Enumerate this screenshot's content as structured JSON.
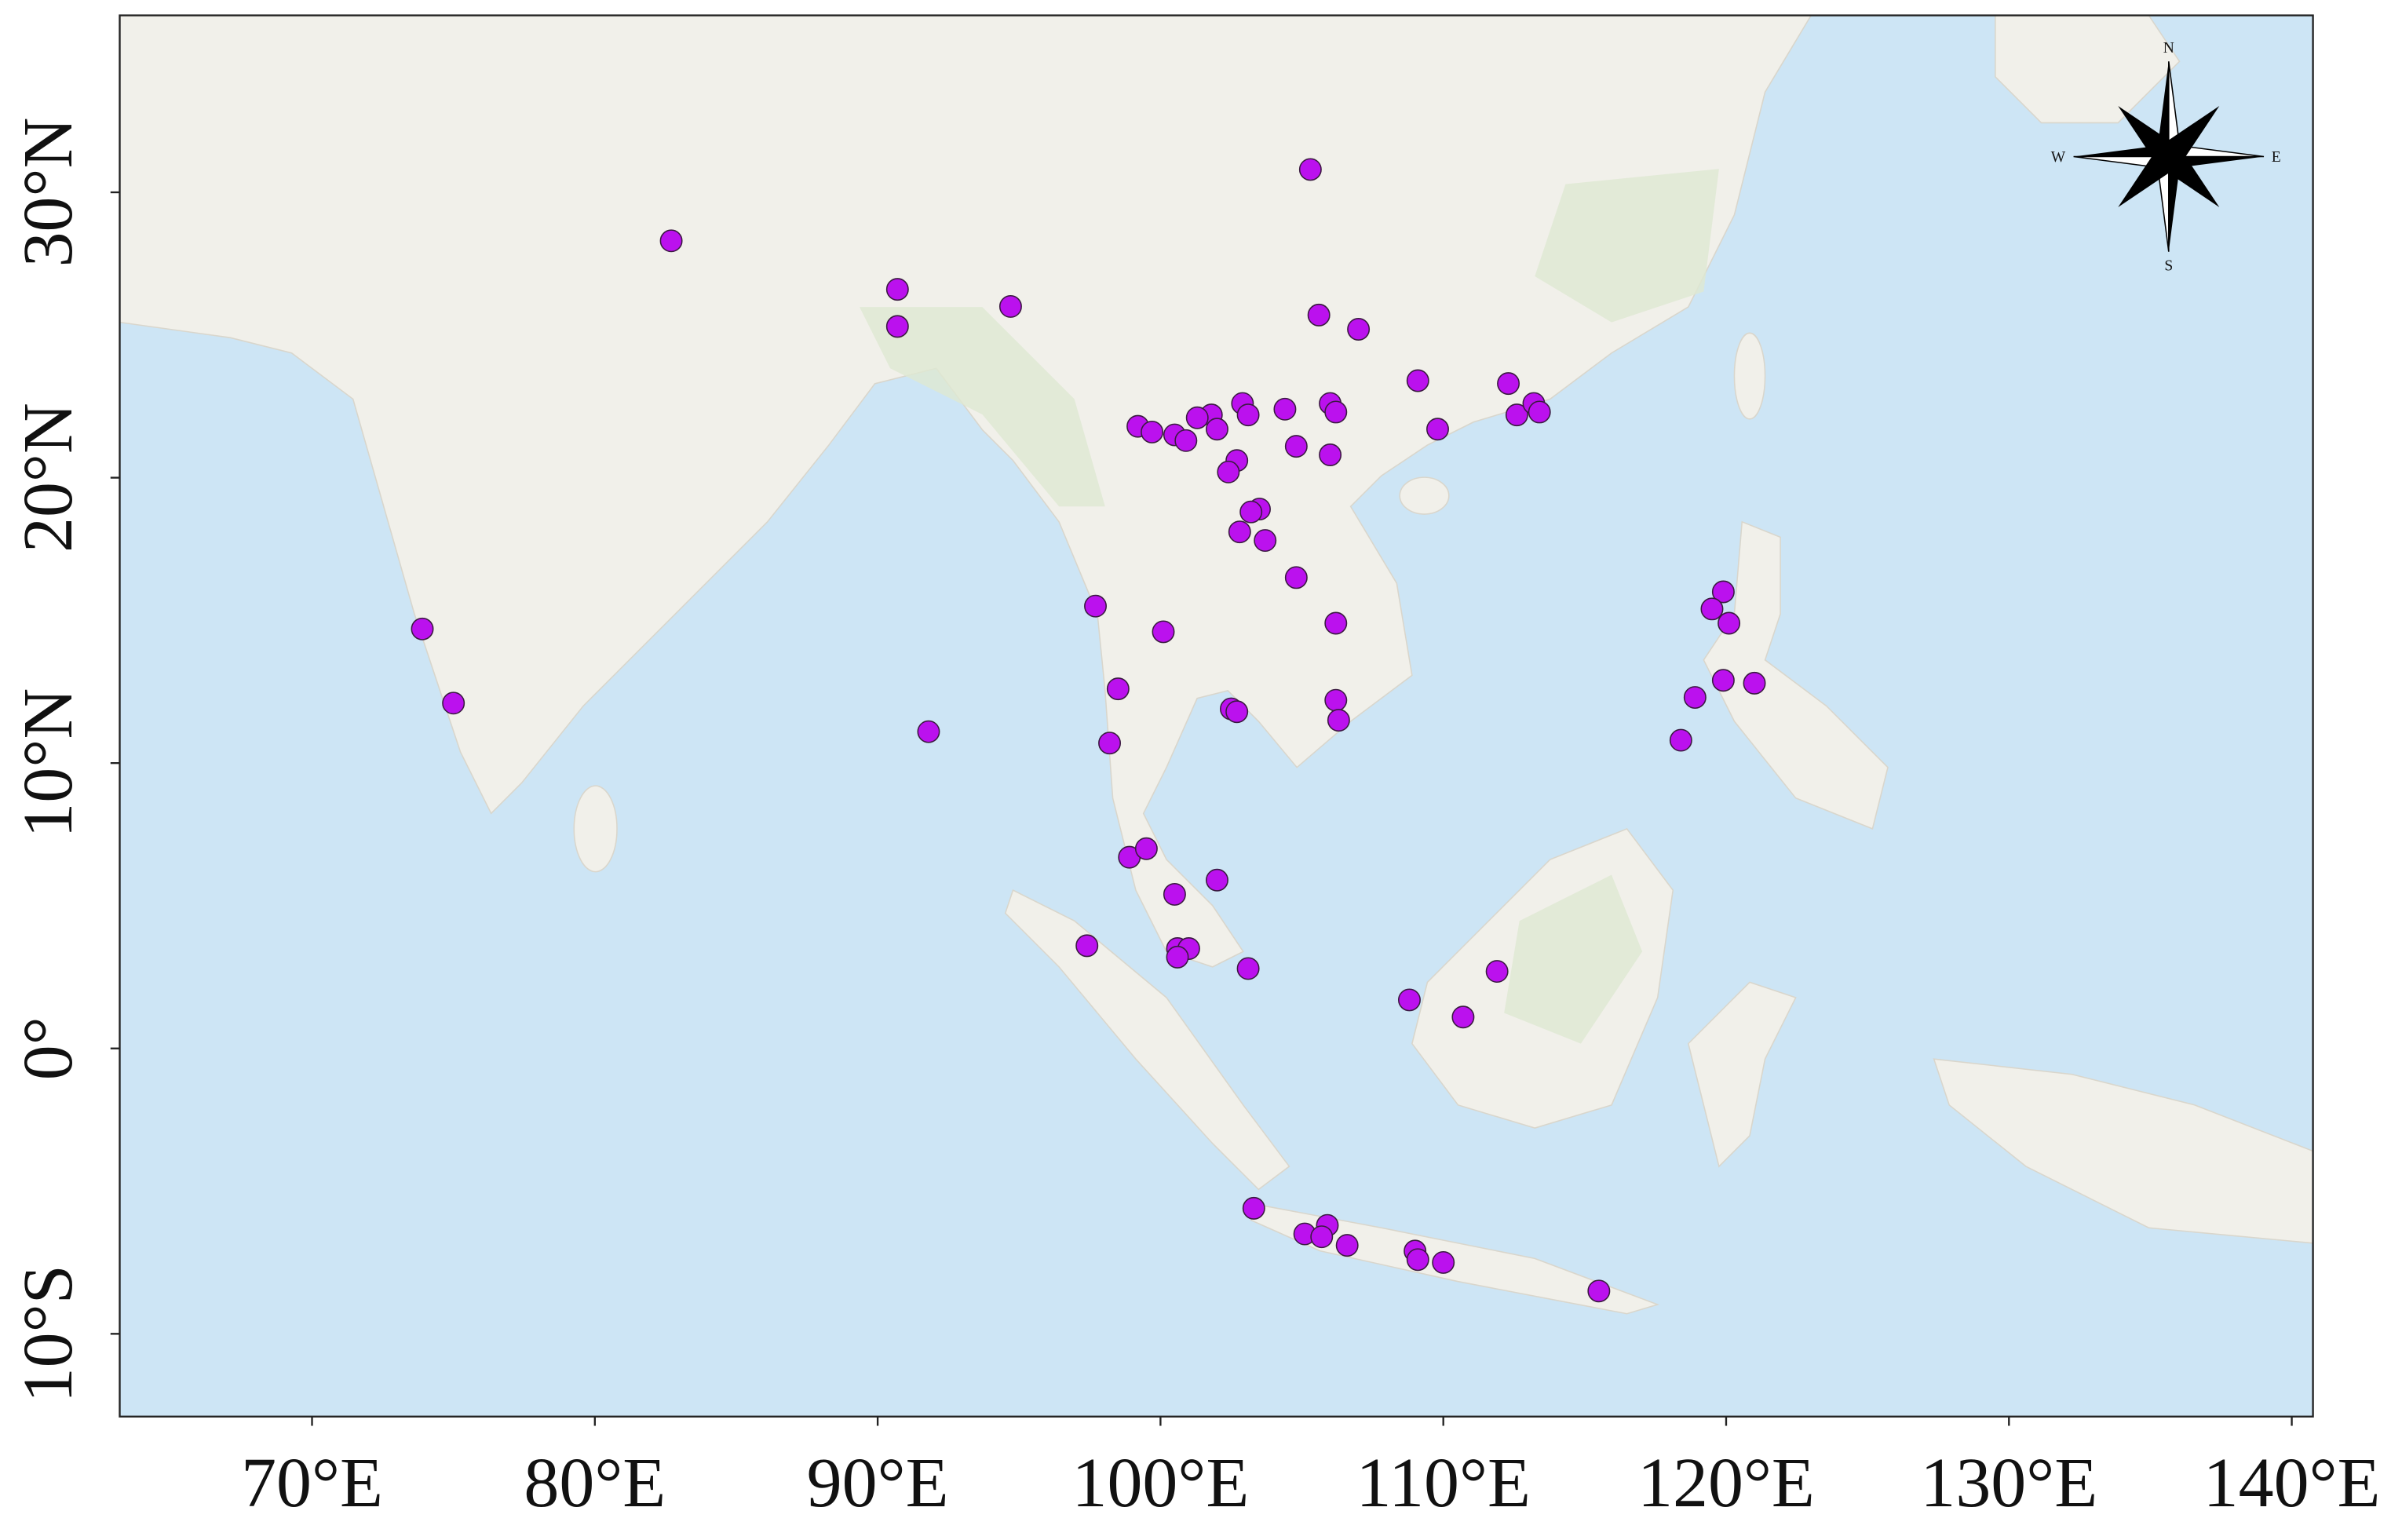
{
  "chart_data": {
    "type": "scatter",
    "x": [
      82.7,
      90.7,
      90.7,
      94.7,
      105.3,
      105.6,
      107.0,
      109.1,
      112.3,
      112.6,
      113.2,
      113.4,
      109.8,
      106.0,
      106.2,
      104.4,
      102.9,
      103.1,
      101.8,
      101.3,
      102.0,
      99.2,
      99.7,
      100.5,
      100.9,
      104.8,
      106.0,
      102.7,
      102.4,
      103.5,
      103.2,
      102.8,
      103.7,
      104.8,
      106.2,
      97.7,
      100.1,
      98.5,
      106.2,
      106.3,
      102.5,
      102.7,
      98.2,
      91.8,
      73.9,
      75.0,
      98.9,
      99.5,
      102.0,
      100.5,
      97.4,
      100.6,
      101.0,
      100.6,
      103.1,
      108.8,
      110.7,
      111.9,
      119.9,
      119.5,
      120.1,
      119.9,
      121.0,
      118.9,
      118.4,
      103.3,
      105.1,
      105.9,
      105.7,
      106.6,
      109.0,
      109.1,
      110.0,
      115.5
    ],
    "values": [
      28.3,
      26.6,
      25.3,
      26.0,
      30.8,
      25.7,
      25.2,
      23.4,
      23.3,
      22.2,
      22.6,
      22.3,
      21.7,
      22.6,
      22.3,
      22.4,
      22.6,
      22.2,
      22.2,
      22.1,
      21.7,
      21.8,
      21.6,
      21.5,
      21.3,
      21.1,
      20.8,
      20.6,
      20.2,
      18.9,
      18.8,
      18.1,
      17.8,
      16.5,
      14.9,
      15.5,
      14.6,
      12.6,
      12.2,
      11.5,
      11.9,
      11.8,
      10.7,
      11.1,
      14.7,
      12.1,
      6.7,
      7.0,
      5.9,
      5.4,
      3.6,
      3.5,
      3.5,
      3.2,
      2.8,
      1.7,
      1.1,
      2.7,
      16.0,
      15.4,
      14.9,
      12.9,
      12.8,
      12.3,
      10.8,
      -5.6,
      -6.5,
      -6.2,
      -6.6,
      -6.9,
      -7.1,
      -7.4,
      -7.5,
      -8.5
    ],
    "color": "#bb11ee",
    "xlim": [
      63.2,
      140.75
    ],
    "ylim": [
      -12.9,
      36.2
    ],
    "xticks": [
      {
        "value": 70,
        "label": "70°E"
      },
      {
        "value": 80,
        "label": "80°E"
      },
      {
        "value": 90,
        "label": "90°E"
      },
      {
        "value": 100,
        "label": "100°E"
      },
      {
        "value": 110,
        "label": "110°E"
      },
      {
        "value": 120,
        "label": "120°E"
      },
      {
        "value": 130,
        "label": "130°E"
      },
      {
        "value": 140,
        "label": "140°E"
      }
    ],
    "yticks": [
      {
        "value": -10,
        "label": "10°S"
      },
      {
        "value": 0,
        "label": "0°"
      },
      {
        "value": 10,
        "label": "10°N"
      },
      {
        "value": 20,
        "label": "20°N"
      },
      {
        "value": 30,
        "label": "30°N"
      }
    ],
    "compass": {
      "n": "N",
      "s": "S",
      "e": "E",
      "w": "W"
    }
  }
}
